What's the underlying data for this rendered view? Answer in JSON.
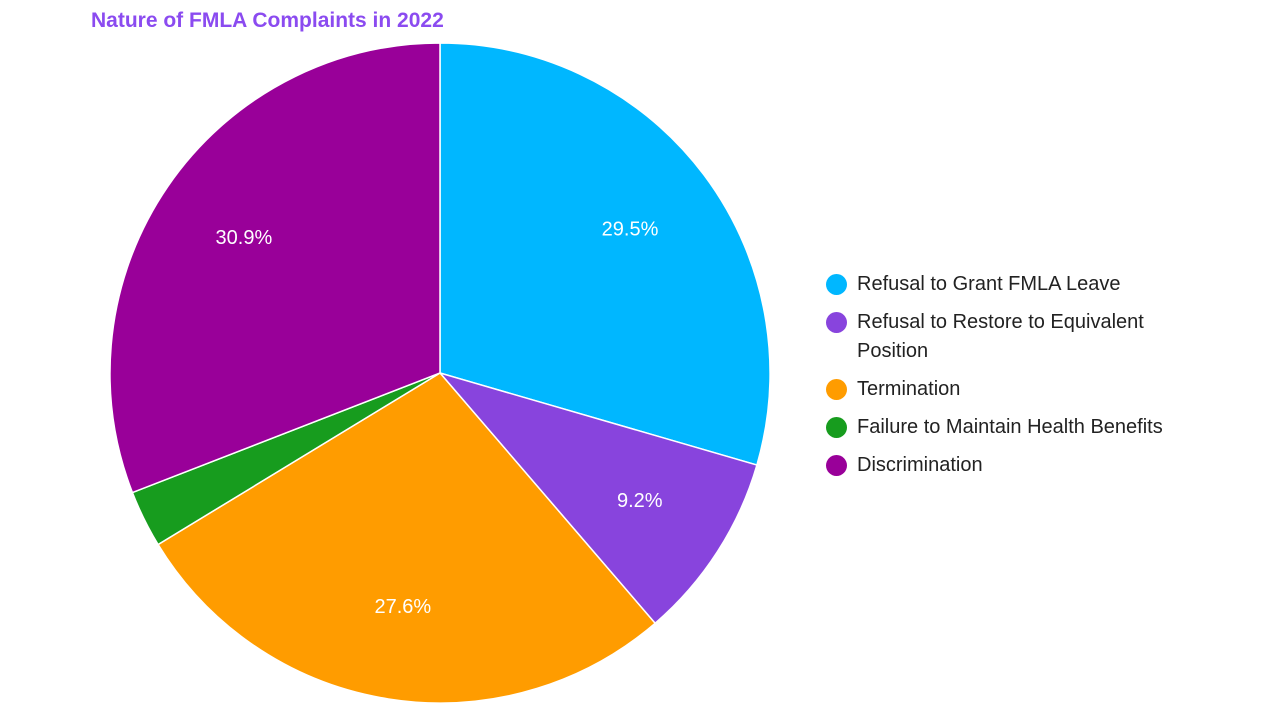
{
  "chart_data": {
    "type": "pie",
    "title": "Nature of FMLA Complaints in 2022",
    "slices": [
      {
        "name": "Refusal to Grant FMLA Leave",
        "value": 29.5,
        "label": "29.5%",
        "color": "#00b7ff"
      },
      {
        "name": "Refusal to Restore to Equivalent Position",
        "value": 9.2,
        "label": "9.2%",
        "color": "#8844dd"
      },
      {
        "name": "Termination",
        "value": 27.6,
        "label": "27.6%",
        "color": "#ff9c00"
      },
      {
        "name": "Failure to Maintain Health Benefits",
        "value": 2.8,
        "label": "",
        "color": "#179c1e"
      },
      {
        "name": "Discrimination",
        "value": 30.9,
        "label": "30.9%",
        "color": "#990099"
      }
    ],
    "legend_position": "right"
  },
  "colors": {
    "title": "#8b4bf0"
  }
}
